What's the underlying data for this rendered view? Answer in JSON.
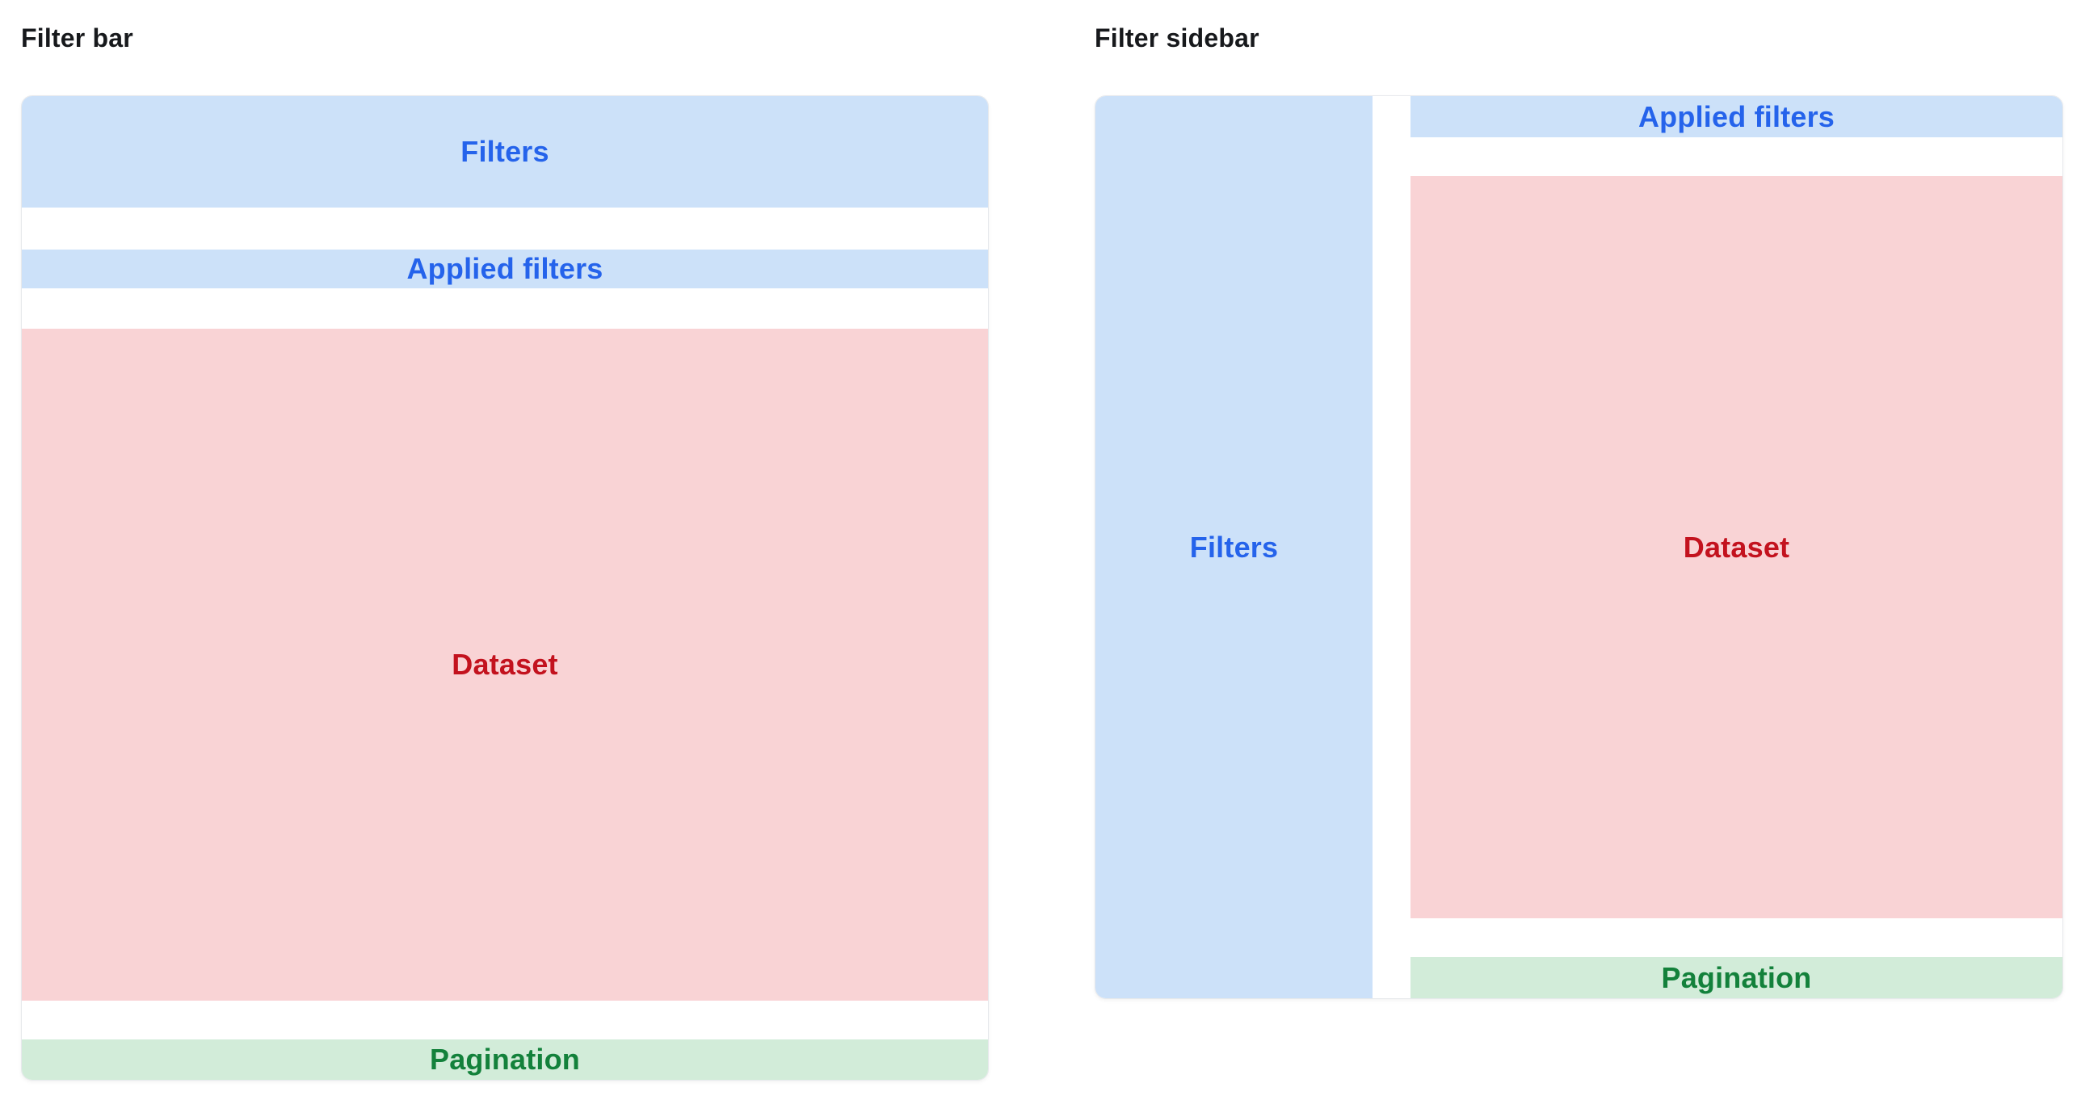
{
  "patterns": {
    "filter_bar": {
      "title": "Filter bar",
      "filters_label": "Filters",
      "applied_filters_label": "Applied filters",
      "dataset_label": "Dataset",
      "pagination_label": "Pagination"
    },
    "filter_sidebar": {
      "title": "Filter sidebar",
      "filters_label": "Filters",
      "applied_filters_label": "Applied filters",
      "dataset_label": "Dataset",
      "pagination_label": "Pagination"
    }
  },
  "colors": {
    "filters_bg": "#cce1f9",
    "filters_text": "#2563eb",
    "dataset_bg": "#f9d3d5",
    "dataset_text": "#c3121e",
    "pagination_bg": "#d2ecd9",
    "pagination_text": "#13813b",
    "title_text": "#17191c",
    "diagram_border": "#e7e9ec",
    "diagram_bg": "#ffffff"
  }
}
